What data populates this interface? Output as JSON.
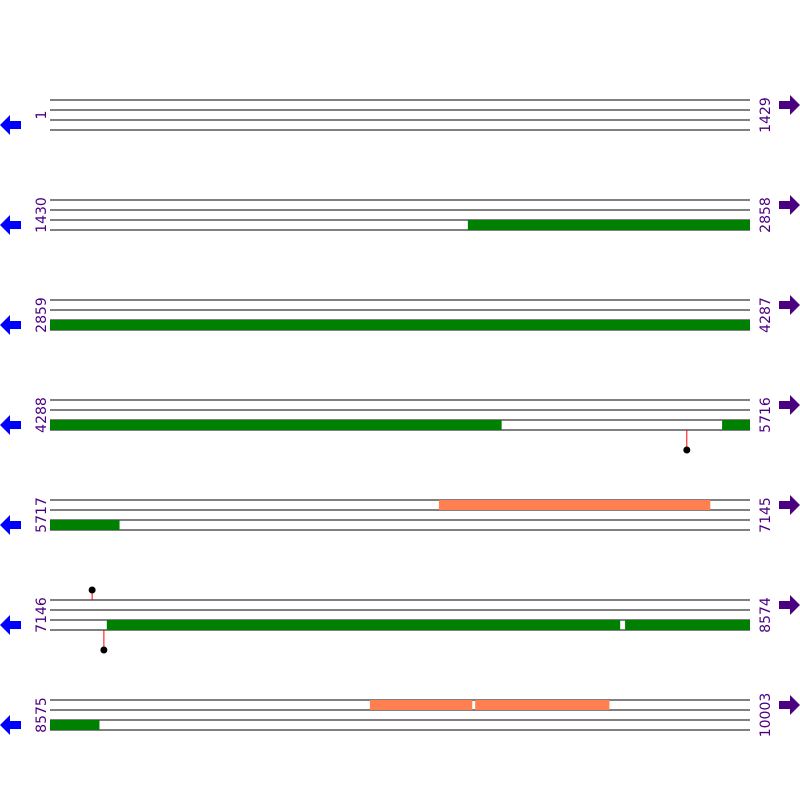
{
  "colors": {
    "line": "#000000",
    "cds": "#008000",
    "region": "#ff7f50",
    "left_arrow": "#0000ff",
    "right_arrow": "#4b0082",
    "label": "#4b0082",
    "stem": "#ff0000",
    "dot": "#000000"
  },
  "icons": {
    "left": "arrow-left-icon",
    "right": "arrow-right-icon"
  },
  "rows": [
    {
      "start": "1",
      "end": "1429",
      "s": 1,
      "e": 1429,
      "features": [],
      "sites": []
    },
    {
      "start": "1430",
      "end": "2858",
      "s": 1430,
      "e": 2858,
      "features": [
        {
          "type": "cds",
          "lane": 3,
          "from": 2283,
          "to": 2858
        }
      ],
      "sites": []
    },
    {
      "start": "2859",
      "end": "4287",
      "s": 2859,
      "e": 4287,
      "features": [
        {
          "type": "cds",
          "lane": 3,
          "from": 2859,
          "to": 4287
        }
      ],
      "sites": []
    },
    {
      "start": "4288",
      "end": "5716",
      "s": 4288,
      "e": 5716,
      "features": [
        {
          "type": "cds",
          "lane": 3,
          "from": 4288,
          "to": 5209
        },
        {
          "type": "cds",
          "lane": 3,
          "from": 5660,
          "to": 5716
        }
      ],
      "sites": [
        {
          "pos": 5588,
          "dir": "down"
        }
      ]
    },
    {
      "start": "5717",
      "end": "7145",
      "s": 5717,
      "e": 7145,
      "features": [
        {
          "type": "region",
          "lane": 1,
          "from": 6511,
          "to": 7064
        },
        {
          "type": "cds",
          "lane": 3,
          "from": 5717,
          "to": 5858
        }
      ],
      "sites": []
    },
    {
      "start": "7146",
      "end": "8574",
      "s": 7146,
      "e": 8574,
      "features": [
        {
          "type": "cds",
          "lane": 3,
          "from": 7262,
          "to": 8309
        },
        {
          "type": "cds",
          "lane": 3,
          "from": 8320,
          "to": 8574
        }
      ],
      "sites": [
        {
          "pos": 7232,
          "dir": "up"
        },
        {
          "pos": 7256,
          "dir": "down"
        }
      ]
    },
    {
      "start": "8575",
      "end": "10003",
      "s": 8575,
      "e": 10003,
      "features": [
        {
          "type": "region",
          "lane": 1,
          "from": 9228,
          "to": 9436
        },
        {
          "type": "region",
          "lane": 1,
          "from": 9443,
          "to": 9716
        },
        {
          "type": "cds",
          "lane": 3,
          "from": 8575,
          "to": 8675
        }
      ],
      "sites": []
    }
  ]
}
